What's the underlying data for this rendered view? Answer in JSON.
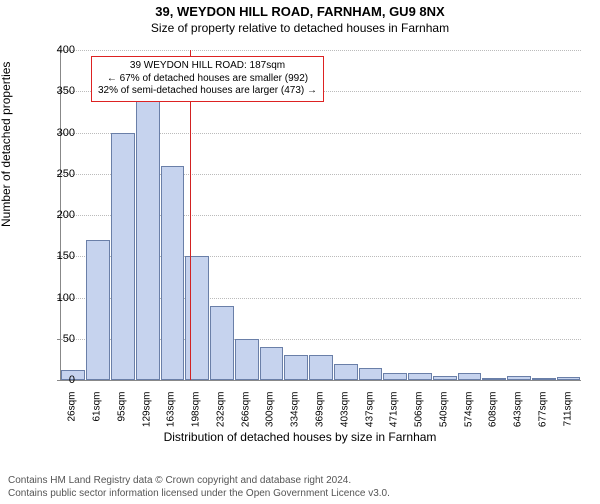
{
  "title": "39, WEYDON HILL ROAD, FARNHAM, GU9 8NX",
  "subtitle": "Size of property relative to detached houses in Farnham",
  "ylabel": "Number of detached properties",
  "xlabel": "Distribution of detached houses by size in Farnham",
  "footer_line1": "Contains HM Land Registry data © Crown copyright and database right 2024.",
  "footer_line2": "Contains public sector information licensed under the Open Government Licence v3.0.",
  "chart": {
    "type": "histogram",
    "ylim": [
      0,
      400
    ],
    "ytick_step": 50,
    "yticks": [
      0,
      50,
      100,
      150,
      200,
      250,
      300,
      350,
      400
    ],
    "bar_fill": "#c6d3ee",
    "bar_stroke": "#6a7fa8",
    "grid_color": "#bbbbbb",
    "background_color": "#ffffff",
    "marker_color": "#d22222",
    "categories": [
      "26sqm",
      "61sqm",
      "95sqm",
      "129sqm",
      "163sqm",
      "198sqm",
      "232sqm",
      "266sqm",
      "300sqm",
      "334sqm",
      "369sqm",
      "403sqm",
      "437sqm",
      "471sqm",
      "506sqm",
      "540sqm",
      "574sqm",
      "608sqm",
      "643sqm",
      "677sqm",
      "711sqm"
    ],
    "values": [
      12,
      170,
      300,
      340,
      260,
      150,
      90,
      50,
      40,
      30,
      30,
      20,
      15,
      8,
      8,
      5,
      8,
      3,
      5,
      3,
      4
    ],
    "marker_value_sqm": 187,
    "annotation": {
      "line1": "39 WEYDON HILL ROAD: 187sqm",
      "line2": "← 67% of detached houses are smaller (992)",
      "line3": "32% of semi-detached houses are larger (473) →"
    },
    "title_fontsize": 13,
    "subtitle_fontsize": 12,
    "label_fontsize": 12,
    "tick_fontsize": 11
  }
}
